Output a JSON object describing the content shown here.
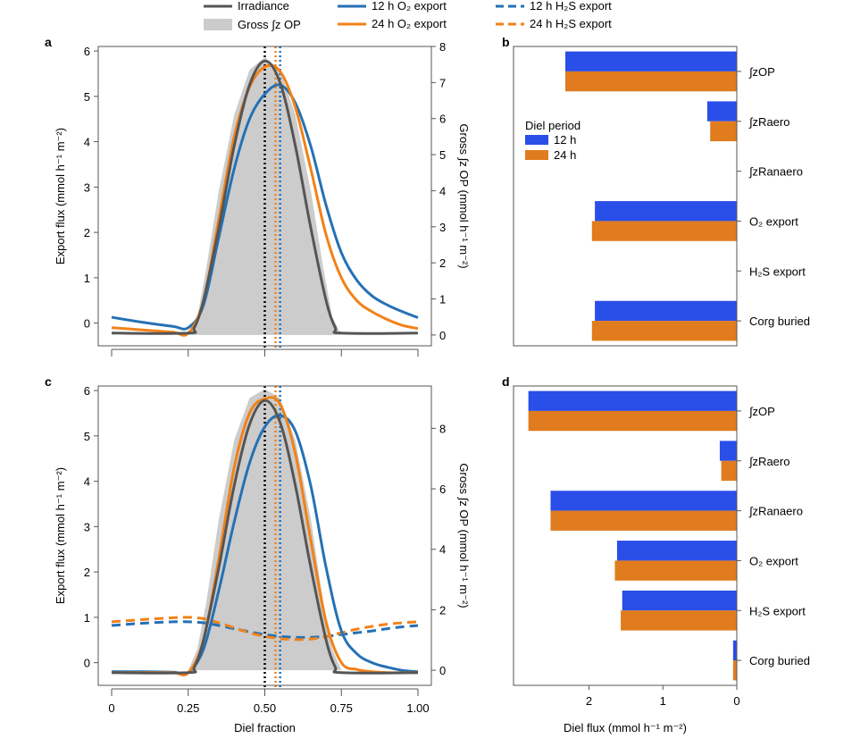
{
  "legend": {
    "irradiance": "Irradiance",
    "gross_op": "Gross ∫z OP",
    "o2_12": "12 h O₂ export",
    "o2_24": "24 h O₂ export",
    "h2s_12": "12 h H₂S export",
    "h2s_24": "24 h H₂S export"
  },
  "colors": {
    "irradiance": "#555555",
    "gross_fill": "#cccccc",
    "h12": "#2471b5",
    "h24": "#f28118",
    "bar12": "#2a4ee8",
    "bar24": "#e07c1e",
    "v_black": "#000000"
  },
  "chart_data": [
    {
      "panel": "a",
      "type": "line",
      "xlabel": "",
      "ylabel": "Export flux (mmol h⁻¹ m⁻²)",
      "y2label": "Gross ∫z OP (mmol h⁻¹ m⁻²)",
      "xlim": [
        0,
        1
      ],
      "ylim": [
        -0.5,
        6.1
      ],
      "y2lim": [
        -0.3,
        8
      ],
      "yticks": [
        "0",
        "1",
        "2",
        "3",
        "4",
        "5",
        "6"
      ],
      "y2ticks": [
        "0",
        "1",
        "2",
        "3",
        "4",
        "5",
        "6",
        "7",
        "8"
      ],
      "vlines": [
        0.5,
        0.535,
        0.55
      ],
      "series": [
        {
          "name": "Irradiance",
          "x": [
            0,
            0.25,
            0.27,
            0.3,
            0.35,
            0.4,
            0.45,
            0.5,
            0.55,
            0.6,
            0.65,
            0.7,
            0.73,
            0.75,
            1.0
          ],
          "values": [
            -0.22,
            -0.22,
            -0.1,
            0.5,
            2.1,
            3.9,
            5.25,
            5.78,
            5.3,
            3.9,
            2.1,
            0.5,
            -0.1,
            -0.22,
            -0.22
          ]
        },
        {
          "name": "Gross ∫z OP",
          "x": [
            0.25,
            0.28,
            0.31,
            0.35,
            0.4,
            0.45,
            0.5,
            0.55,
            0.6,
            0.65,
            0.69,
            0.72,
            0.75
          ],
          "values": [
            0,
            0.5,
            1.9,
            4.0,
            6.1,
            7.35,
            7.7,
            7.35,
            6.1,
            4.0,
            1.9,
            0.5,
            0
          ]
        },
        {
          "name": "12 h O₂ export",
          "x": [
            0,
            0.1,
            0.2,
            0.25,
            0.3,
            0.35,
            0.4,
            0.45,
            0.5,
            0.55,
            0.6,
            0.65,
            0.7,
            0.75,
            0.8,
            0.85,
            0.9,
            0.95,
            1.0
          ],
          "values": [
            0.13,
            0.02,
            -0.07,
            -0.1,
            0.4,
            1.9,
            3.4,
            4.5,
            5.05,
            5.25,
            4.85,
            3.9,
            2.6,
            1.55,
            0.95,
            0.6,
            0.4,
            0.25,
            0.12
          ]
        },
        {
          "name": "24 h O₂ export",
          "x": [
            0,
            0.1,
            0.2,
            0.25,
            0.3,
            0.35,
            0.4,
            0.45,
            0.5,
            0.55,
            0.6,
            0.65,
            0.7,
            0.75,
            0.8,
            0.85,
            0.9,
            0.95,
            1.0
          ],
          "values": [
            -0.1,
            -0.15,
            -0.2,
            -0.22,
            0.5,
            2.3,
            4.1,
            5.2,
            5.65,
            5.55,
            4.75,
            3.4,
            1.95,
            1.0,
            0.5,
            0.25,
            0.08,
            -0.05,
            -0.12
          ]
        }
      ]
    },
    {
      "panel": "b",
      "type": "bar",
      "orientation": "horizontal",
      "categories": [
        "∫zOP",
        "∫zRaero",
        "∫zRanaero",
        "O₂ export",
        "H₂S export",
        "Corg buried"
      ],
      "legend_title": "Diel period",
      "series": [
        {
          "name": "12 h",
          "values": [
            2.32,
            0.4,
            0,
            1.92,
            0,
            1.92
          ]
        },
        {
          "name": "24 h",
          "values": [
            2.32,
            0.36,
            0,
            1.96,
            0,
            1.96
          ]
        }
      ],
      "xlim": [
        0,
        2.9
      ],
      "xreversed": true
    },
    {
      "panel": "c",
      "type": "line",
      "xlabel": "Diel fraction",
      "ylabel": "Export flux (mmol h⁻¹ m⁻²)",
      "y2label": "Gross ∫z OP (mmol h⁻¹ m⁻²)",
      "xlim": [
        0,
        1
      ],
      "xticks": [
        "0",
        "0.25",
        "0.50",
        "0.75",
        "1.00"
      ],
      "ylim": [
        -0.5,
        6.1
      ],
      "y2lim": [
        -0.5,
        9.4
      ],
      "yticks": [
        "0",
        "1",
        "2",
        "3",
        "4",
        "5",
        "6"
      ],
      "y2ticks": [
        "0",
        "2",
        "4",
        "6",
        "8"
      ],
      "vlines": [
        0.5,
        0.535,
        0.55
      ],
      "series": [
        {
          "name": "Irradiance",
          "x": [
            0,
            0.25,
            0.27,
            0.3,
            0.35,
            0.4,
            0.45,
            0.5,
            0.55,
            0.6,
            0.65,
            0.7,
            0.73,
            0.75,
            1.0
          ],
          "values": [
            -0.22,
            -0.22,
            -0.1,
            0.5,
            2.1,
            3.9,
            5.25,
            5.78,
            5.3,
            3.9,
            2.1,
            0.5,
            -0.1,
            -0.22,
            -0.22
          ]
        },
        {
          "name": "Gross ∫z OP",
          "x": [
            0.25,
            0.28,
            0.31,
            0.35,
            0.4,
            0.45,
            0.5,
            0.55,
            0.6,
            0.65,
            0.69,
            0.72,
            0.75
          ],
          "values": [
            0,
            0.7,
            2.3,
            5.0,
            7.6,
            9.0,
            9.3,
            9.0,
            7.6,
            5.0,
            2.3,
            0.7,
            0
          ]
        },
        {
          "name": "12 h O₂ export",
          "x": [
            0,
            0.1,
            0.2,
            0.25,
            0.3,
            0.35,
            0.4,
            0.45,
            0.5,
            0.55,
            0.6,
            0.65,
            0.7,
            0.75,
            0.8,
            0.85,
            0.9,
            0.95,
            1.0
          ],
          "values": [
            -0.2,
            -0.2,
            -0.21,
            -0.22,
            0.3,
            1.6,
            3.1,
            4.4,
            5.2,
            5.45,
            5.1,
            3.9,
            2.1,
            0.7,
            0.2,
            0.0,
            -0.1,
            -0.17,
            -0.2
          ]
        },
        {
          "name": "24 h O₂ export",
          "x": [
            0,
            0.1,
            0.2,
            0.25,
            0.3,
            0.35,
            0.4,
            0.45,
            0.5,
            0.55,
            0.6,
            0.65,
            0.7,
            0.75,
            0.8,
            0.85,
            0.9,
            0.95,
            1.0
          ],
          "values": [
            -0.22,
            -0.22,
            -0.22,
            -0.22,
            0.5,
            2.3,
            4.3,
            5.5,
            5.82,
            5.7,
            4.6,
            2.7,
            0.9,
            0.0,
            -0.15,
            -0.2,
            -0.22,
            -0.22,
            -0.22
          ]
        },
        {
          "name": "12 h H₂S export",
          "x": [
            0,
            0.1,
            0.2,
            0.25,
            0.3,
            0.35,
            0.4,
            0.45,
            0.5,
            0.55,
            0.6,
            0.65,
            0.7,
            0.75,
            0.8,
            0.85,
            0.9,
            0.95,
            1.0
          ],
          "values": [
            0.82,
            0.87,
            0.9,
            0.9,
            0.88,
            0.82,
            0.75,
            0.68,
            0.62,
            0.58,
            0.56,
            0.56,
            0.58,
            0.62,
            0.66,
            0.7,
            0.75,
            0.79,
            0.82
          ]
        },
        {
          "name": "24 h H₂S export",
          "x": [
            0,
            0.1,
            0.2,
            0.25,
            0.3,
            0.35,
            0.4,
            0.45,
            0.5,
            0.55,
            0.6,
            0.65,
            0.7,
            0.75,
            0.8,
            0.85,
            0.9,
            0.95,
            1.0
          ],
          "values": [
            0.9,
            0.95,
            0.99,
            1.0,
            0.97,
            0.88,
            0.77,
            0.66,
            0.58,
            0.53,
            0.51,
            0.52,
            0.58,
            0.66,
            0.74,
            0.8,
            0.85,
            0.88,
            0.9
          ]
        }
      ]
    },
    {
      "panel": "d",
      "type": "bar",
      "orientation": "horizontal",
      "categories": [
        "∫zOP",
        "∫zRaero",
        "∫zRanaero",
        "O₂ export",
        "H₂S export",
        "Corg buried"
      ],
      "series": [
        {
          "name": "12 h",
          "values": [
            2.82,
            0.23,
            2.52,
            1.62,
            1.55,
            0.05
          ]
        },
        {
          "name": "24 h",
          "values": [
            2.82,
            0.21,
            2.52,
            1.65,
            1.57,
            0.05
          ]
        }
      ],
      "xlim": [
        0,
        2.9
      ],
      "xticks": [
        "2",
        "1",
        "0"
      ],
      "xlabel": "Diel flux (mmol h⁻¹ m⁻²)",
      "xreversed": true
    }
  ],
  "labels": {
    "a": "a",
    "b": "b",
    "c": "c",
    "d": "d",
    "diel_period": "Diel period",
    "leg12": "12 h",
    "leg24": "24 h"
  }
}
